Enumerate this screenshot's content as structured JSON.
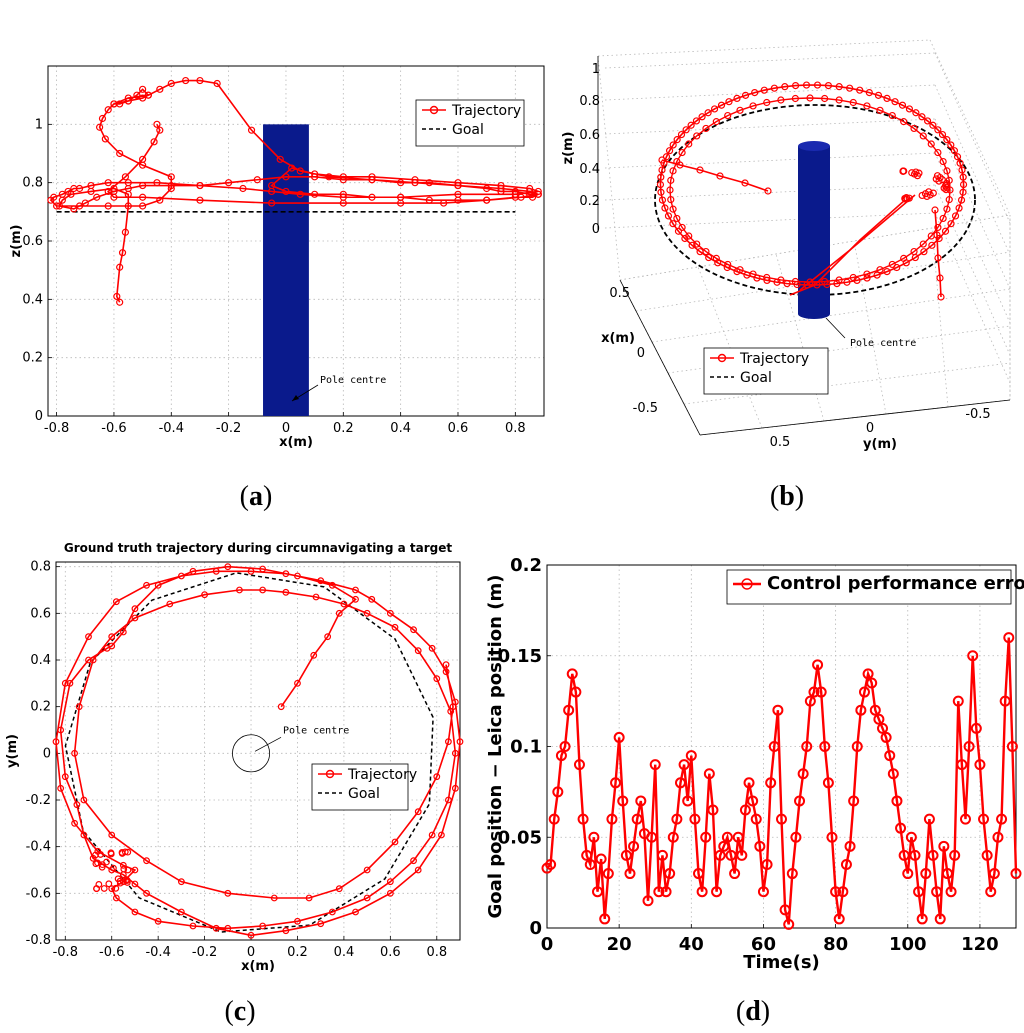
{
  "colors": {
    "trajectory": "#ff0000",
    "goal": "#000000",
    "pole": "#0a1a8c"
  },
  "chart_data": [
    {
      "panel": "a",
      "caption_letter": "a",
      "type": "line",
      "title": "",
      "xlabel": "x(m)",
      "ylabel": "z(m)",
      "xlim": [
        -0.83,
        0.9
      ],
      "ylim": [
        0,
        1.2
      ],
      "xticks": [
        "-0.8",
        "-0.6",
        "-0.4",
        "-0.2",
        "0",
        "0.2",
        "0.4",
        "0.6",
        "0.8"
      ],
      "xtick_values": [
        -0.8,
        -0.6,
        -0.4,
        -0.2,
        0,
        0.2,
        0.4,
        0.6,
        0.8
      ],
      "yticks": [
        "0",
        "0.2",
        "0.4",
        "0.6",
        "0.8",
        "1"
      ],
      "ytick_values": [
        0,
        0.2,
        0.4,
        0.6,
        0.8,
        1
      ],
      "legend": [
        "Trajectory",
        "Goal"
      ],
      "annotation": "Pole centre",
      "pole": {
        "x": [
          -0.08,
          0.08
        ],
        "z": [
          0,
          1
        ]
      },
      "goal": {
        "x": [
          -0.8,
          0.8
        ],
        "y": [
          0.7,
          0.7
        ]
      },
      "series": [
        {
          "name": "Trajectory",
          "x": [
            -0.58,
            -0.59,
            -0.58,
            -0.57,
            -0.56,
            -0.55,
            -0.55,
            -0.6,
            -0.68,
            -0.75,
            -0.78,
            -0.79,
            -0.74,
            -0.7,
            -0.66,
            -0.6,
            -0.55,
            -0.5,
            -0.4,
            -0.3,
            -0.2,
            -0.1,
            0,
            0.1,
            0.2,
            0.3,
            0.4,
            0.5,
            0.6,
            0.7,
            0.75,
            0.8,
            0.85,
            0.88,
            0.86,
            0.8,
            0.7,
            0.6,
            0.5,
            0.4,
            0.3,
            0.2,
            0.1,
            0,
            -0.05,
            0.02,
            0.1,
            0.2,
            0.3,
            0.45,
            0.6,
            0.75,
            0.85,
            0.88,
            0.8,
            0.6,
            0.4,
            0.2,
            0.05,
            -0.05,
            -0.15,
            -0.3,
            -0.45,
            -0.55,
            -0.62,
            -0.68,
            -0.72,
            -0.74,
            -0.76,
            -0.78,
            -0.81,
            -0.82,
            -0.8,
            -0.72,
            -0.62,
            -0.5,
            -0.44,
            -0.4,
            -0.4,
            -0.5,
            -0.58,
            -0.63,
            -0.65,
            -0.64,
            -0.62,
            -0.6,
            -0.55,
            -0.5,
            -0.48,
            -0.5,
            -0.52,
            -0.55,
            -0.58,
            -0.6,
            -0.55,
            -0.48,
            -0.44,
            -0.4,
            -0.35,
            -0.3,
            -0.24,
            -0.12,
            -0.02,
            0.05,
            0.15,
            0.3,
            0.45,
            0.6,
            0.75,
            0.85,
            0.88,
            0.82,
            0.7,
            0.55,
            0.4,
            0.2,
            -0.05,
            -0.3,
            -0.5,
            -0.6,
            -0.62,
            -0.56,
            -0.5,
            -0.46,
            -0.44,
            -0.45
          ],
          "y": [
            0.39,
            0.41,
            0.51,
            0.56,
            0.63,
            0.72,
            0.76,
            0.78,
            0.77,
            0.76,
            0.74,
            0.72,
            0.71,
            0.73,
            0.75,
            0.77,
            0.78,
            0.79,
            0.79,
            0.79,
            0.8,
            0.81,
            0.82,
            0.82,
            0.81,
            0.81,
            0.8,
            0.8,
            0.79,
            0.78,
            0.77,
            0.77,
            0.76,
            0.76,
            0.75,
            0.75,
            0.74,
            0.74,
            0.74,
            0.75,
            0.75,
            0.76,
            0.76,
            0.77,
            0.79,
            0.85,
            0.83,
            0.82,
            0.82,
            0.81,
            0.8,
            0.79,
            0.78,
            0.77,
            0.76,
            0.76,
            0.75,
            0.75,
            0.76,
            0.77,
            0.78,
            0.79,
            0.8,
            0.8,
            0.8,
            0.79,
            0.78,
            0.78,
            0.77,
            0.76,
            0.75,
            0.74,
            0.72,
            0.72,
            0.72,
            0.72,
            0.74,
            0.78,
            0.82,
            0.86,
            0.9,
            0.95,
            0.99,
            1.02,
            1.05,
            1.07,
            1.08,
            1.09,
            1.1,
            1.12,
            1.1,
            1.08,
            1.07,
            1.07,
            1.09,
            1.1,
            1.12,
            1.14,
            1.15,
            1.15,
            1.14,
            0.98,
            0.88,
            0.84,
            0.82,
            0.81,
            0.8,
            0.79,
            0.78,
            0.77,
            0.76,
            0.75,
            0.74,
            0.73,
            0.73,
            0.73,
            0.73,
            0.74,
            0.75,
            0.75,
            0.77,
            0.82,
            0.88,
            0.94,
            0.98,
            1.0
          ]
        }
      ]
    },
    {
      "panel": "b",
      "caption_letter": "b",
      "type": "line",
      "title": "",
      "xlabel": "y(m)",
      "ylabel": "x(m)",
      "zlabel": "z(m)",
      "xticks": [
        "0.5",
        "0",
        "-0.5"
      ],
      "yticks": [
        "0.5",
        "0",
        "-0.5"
      ],
      "zticks": [
        "0",
        "0.2",
        "0.4",
        "0.6",
        "0.8",
        "1"
      ],
      "legend": [
        "Trajectory",
        "Goal"
      ],
      "annotation": "Pole centre",
      "goal_z": 0.7,
      "series": [
        {
          "name": "Trajectory",
          "note": "3D view of the same circumnavigation: trajectory loop at z ~0.75-0.85 around the pole, goal circle at z = 0.7"
        }
      ]
    },
    {
      "panel": "c",
      "caption_letter": "c",
      "type": "line",
      "title": "Ground truth trajectory during circumnavigating a target",
      "xlabel": "x(m)",
      "ylabel": "y(m)",
      "xlim": [
        -0.84,
        0.9
      ],
      "ylim": [
        -0.8,
        0.82
      ],
      "xticks": [
        "-0.8",
        "-0.6",
        "-0.4",
        "-0.2",
        "0",
        "0.2",
        "0.4",
        "0.6",
        "0.8"
      ],
      "xtick_values": [
        -0.8,
        -0.6,
        -0.4,
        -0.2,
        0,
        0.2,
        0.4,
        0.6,
        0.8
      ],
      "yticks": [
        "-0.8",
        "-0.6",
        "-0.4",
        "-0.2",
        "0",
        "0.2",
        "0.4",
        "0.6",
        "0.8"
      ],
      "ytick_values": [
        -0.8,
        -0.6,
        -0.4,
        -0.2,
        0,
        0.2,
        0.4,
        0.6,
        0.8
      ],
      "legend": [
        "Trajectory",
        "Goal"
      ],
      "annotation": "Pole centre",
      "pole_circle": {
        "x": 0,
        "y": 0,
        "r": 0.08
      },
      "goal": {
        "radius": 0.8
      },
      "series": [
        {
          "name": "Trajectory",
          "x": [
            0.13,
            0.2,
            0.27,
            0.33,
            0.38,
            0.45,
            0.35,
            0.2,
            0.05,
            -0.1,
            -0.25,
            -0.4,
            -0.5,
            -0.55,
            -0.6,
            -0.62,
            -0.7,
            -0.78,
            -0.82,
            -0.8,
            -0.75,
            -0.72,
            -0.68,
            -0.6,
            -0.55,
            -0.5,
            -0.45,
            -0.3,
            -0.15,
            0,
            0.15,
            0.3,
            0.45,
            0.6,
            0.72,
            0.82,
            0.88,
            0.9,
            0.88,
            0.84,
            0.78,
            0.7,
            0.6,
            0.52,
            0.45,
            0.3,
            0.15,
            0,
            -0.15,
            -0.3,
            -0.45,
            -0.58,
            -0.7,
            -0.8,
            -0.84,
            -0.82,
            -0.76,
            -0.66,
            -0.55,
            -0.5,
            -0.55,
            -0.6,
            -0.58,
            -0.5,
            -0.4,
            -0.25,
            -0.1,
            0.05,
            0.2,
            0.35,
            0.5,
            0.6,
            0.7,
            0.78,
            0.85,
            0.88,
            0.86,
            0.8,
            0.72,
            0.62,
            0.5,
            0.4,
            0.28,
            0.15,
            0.05,
            -0.05,
            -0.2,
            -0.35,
            -0.5,
            -0.6,
            -0.68,
            -0.74,
            -0.76,
            -0.72,
            -0.6,
            -0.45,
            -0.3,
            -0.1,
            0.1,
            0.25,
            0.38,
            0.5,
            0.62,
            0.72,
            0.8,
            0.85,
            0.87,
            0.84
          ],
          "y": [
            0.2,
            0.3,
            0.42,
            0.5,
            0.6,
            0.66,
            0.72,
            0.76,
            0.79,
            0.8,
            0.78,
            0.72,
            0.62,
            0.52,
            0.46,
            0.45,
            0.4,
            0.3,
            0.1,
            -0.1,
            -0.22,
            -0.35,
            -0.45,
            -0.5,
            -0.52,
            -0.56,
            -0.6,
            -0.68,
            -0.75,
            -0.78,
            -0.76,
            -0.73,
            -0.68,
            -0.6,
            -0.5,
            -0.35,
            -0.15,
            0.05,
            0.22,
            0.35,
            0.45,
            0.53,
            0.6,
            0.66,
            0.7,
            0.74,
            0.77,
            0.78,
            0.78,
            0.76,
            0.72,
            0.65,
            0.5,
            0.3,
            0.05,
            -0.15,
            -0.3,
            -0.42,
            -0.48,
            -0.5,
            -0.55,
            -0.58,
            -0.62,
            -0.68,
            -0.72,
            -0.74,
            -0.75,
            -0.74,
            -0.72,
            -0.68,
            -0.62,
            -0.55,
            -0.46,
            -0.35,
            -0.2,
            0.0,
            0.18,
            0.32,
            0.44,
            0.54,
            0.6,
            0.64,
            0.67,
            0.69,
            0.7,
            0.7,
            0.68,
            0.64,
            0.58,
            0.5,
            0.4,
            0.2,
            0.0,
            -0.2,
            -0.35,
            -0.46,
            -0.55,
            -0.6,
            -0.62,
            -0.62,
            -0.58,
            -0.5,
            -0.38,
            -0.25,
            -0.1,
            0.05,
            0.2,
            0.38
          ]
        }
      ]
    },
    {
      "panel": "d",
      "caption_letter": "d",
      "type": "line",
      "title": "",
      "xlabel": "Time(s)",
      "ylabel": "Goal position − Leica position (m)",
      "xlim": [
        0,
        130
      ],
      "ylim": [
        0,
        0.2
      ],
      "xticks": [
        "0",
        "20",
        "40",
        "60",
        "80",
        "100",
        "120"
      ],
      "xtick_values": [
        0,
        20,
        40,
        60,
        80,
        100,
        120
      ],
      "yticks": [
        "0",
        "0.05",
        "0.1",
        "0.15",
        "0.2"
      ],
      "ytick_values": [
        0,
        0.05,
        0.1,
        0.15,
        0.2
      ],
      "legend": [
        "Control performance error"
      ],
      "series": [
        {
          "name": "Control performance error",
          "x": [
            0,
            1,
            2,
            3,
            4,
            5,
            6,
            7,
            8,
            9,
            10,
            11,
            12,
            13,
            14,
            15,
            16,
            17,
            18,
            19,
            20,
            21,
            22,
            23,
            24,
            25,
            26,
            27,
            28,
            29,
            30,
            31,
            32,
            33,
            34,
            35,
            36,
            37,
            38,
            39,
            40,
            41,
            42,
            43,
            44,
            45,
            46,
            47,
            48,
            49,
            50,
            51,
            52,
            53,
            54,
            55,
            56,
            57,
            58,
            59,
            60,
            61,
            62,
            63,
            64,
            65,
            66,
            67,
            68,
            69,
            70,
            71,
            72,
            73,
            74,
            75,
            76,
            77,
            78,
            79,
            80,
            81,
            82,
            83,
            84,
            85,
            86,
            87,
            88,
            89,
            90,
            91,
            92,
            93,
            94,
            95,
            96,
            97,
            98,
            99,
            100,
            101,
            102,
            103,
            104,
            105,
            106,
            107,
            108,
            109,
            110,
            111,
            112,
            113,
            114,
            115,
            116,
            117,
            118,
            119,
            120,
            121,
            122,
            123,
            124,
            125,
            126,
            127,
            128,
            129,
            130
          ],
          "values": [
            0.033,
            0.035,
            0.06,
            0.075,
            0.095,
            0.1,
            0.12,
            0.14,
            0.13,
            0.09,
            0.06,
            0.04,
            0.035,
            0.05,
            0.02,
            0.038,
            0.005,
            0.03,
            0.06,
            0.08,
            0.105,
            0.07,
            0.04,
            0.03,
            0.045,
            0.06,
            0.07,
            0.052,
            0.015,
            0.05,
            0.09,
            0.02,
            0.04,
            0.02,
            0.03,
            0.05,
            0.06,
            0.08,
            0.09,
            0.07,
            0.095,
            0.06,
            0.03,
            0.02,
            0.05,
            0.085,
            0.065,
            0.02,
            0.04,
            0.045,
            0.05,
            0.04,
            0.03,
            0.05,
            0.04,
            0.065,
            0.08,
            0.07,
            0.06,
            0.045,
            0.02,
            0.035,
            0.08,
            0.1,
            0.12,
            0.06,
            0.01,
            0.002,
            0.03,
            0.05,
            0.07,
            0.085,
            0.1,
            0.125,
            0.13,
            0.145,
            0.13,
            0.1,
            0.08,
            0.05,
            0.02,
            0.005,
            0.02,
            0.035,
            0.045,
            0.07,
            0.1,
            0.12,
            0.13,
            0.14,
            0.135,
            0.12,
            0.115,
            0.11,
            0.105,
            0.095,
            0.085,
            0.07,
            0.055,
            0.04,
            0.03,
            0.05,
            0.04,
            0.02,
            0.005,
            0.03,
            0.06,
            0.04,
            0.02,
            0.005,
            0.045,
            0.03,
            0.02,
            0.04,
            0.125,
            0.09,
            0.06,
            0.1,
            0.15,
            0.11,
            0.09,
            0.06,
            0.04,
            0.02,
            0.03,
            0.05,
            0.06,
            0.125,
            0.16,
            0.1,
            0.03
          ]
        }
      ]
    }
  ]
}
